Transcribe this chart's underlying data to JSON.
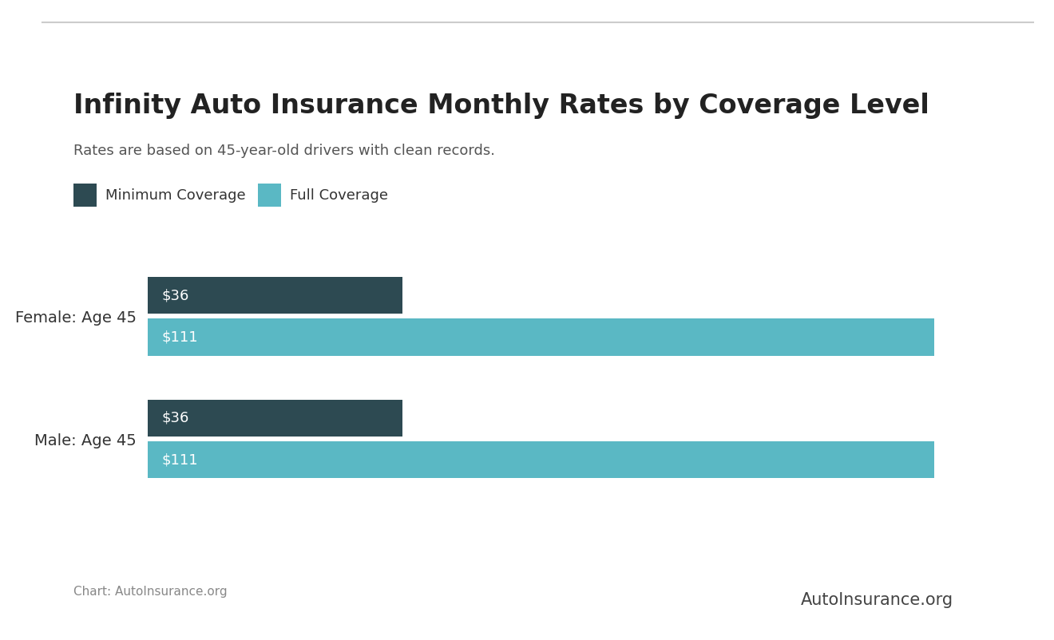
{
  "title": "Infinity Auto Insurance Monthly Rates by Coverage Level",
  "subtitle": "Rates are based on 45-year-old drivers with clean records.",
  "categories": [
    "Male: Age 45",
    "Female: Age 45"
  ],
  "min_coverage_values": [
    36,
    36
  ],
  "full_coverage_values": [
    111,
    111
  ],
  "min_coverage_color": "#2d4a52",
  "full_coverage_color": "#5ab8c4",
  "bar_height": 0.3,
  "background_color": "#ffffff",
  "title_fontsize": 24,
  "subtitle_fontsize": 13,
  "bar_label_fontsize": 13,
  "legend_fontsize": 13,
  "category_fontsize": 14,
  "footer_text": "Chart: AutoInsurance.org",
  "footer_fontsize": 11,
  "legend_labels": [
    "Minimum Coverage",
    "Full Coverage"
  ],
  "xlim_max": 122,
  "top_line_color": "#cccccc",
  "title_color": "#222222",
  "subtitle_color": "#555555",
  "category_color": "#333333",
  "footer_color": "#888888",
  "bar_label_color": "#ffffff",
  "branding_text": "AutoInsurance.org",
  "branding_fontsize": 15
}
